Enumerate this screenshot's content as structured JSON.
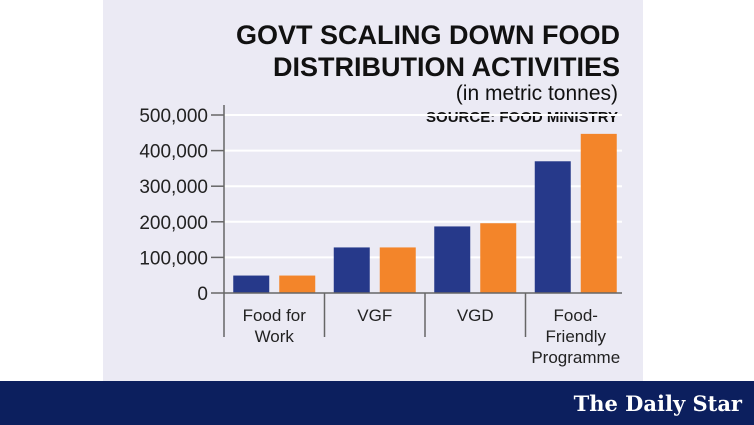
{
  "chart_data": {
    "type": "bar",
    "title": "GOVT SCALING DOWN FOOD DISTRIBUTION ACTIVITIES",
    "title_lines": [
      "GOVT SCALING DOWN FOOD",
      "DISTRIBUTION ACTIVITIES"
    ],
    "subtitle": "(in metric tonnes)",
    "source": "SOURCE: FOOD MINISTRY",
    "categories": [
      [
        "Food for",
        "Work"
      ],
      [
        "VGF"
      ],
      [
        "VGD"
      ],
      [
        "Food-",
        "Friendly",
        "Programme"
      ]
    ],
    "series": [
      {
        "values": [
          49000,
          128000,
          187000,
          370000
        ],
        "color": "#26398a"
      },
      {
        "values": [
          49000,
          128000,
          196000,
          447000
        ],
        "color": "#f3852a"
      }
    ],
    "ylim": [
      0,
      500000
    ],
    "yticks": [
      "0",
      "100,000",
      "200,000",
      "300,000",
      "400,000",
      "500,000"
    ],
    "grid": true,
    "legend": "none"
  },
  "brand": {
    "logo_text": "The Daily Star",
    "banner_color": "#0c1f5e",
    "panel_color": "#ebeaf4"
  }
}
